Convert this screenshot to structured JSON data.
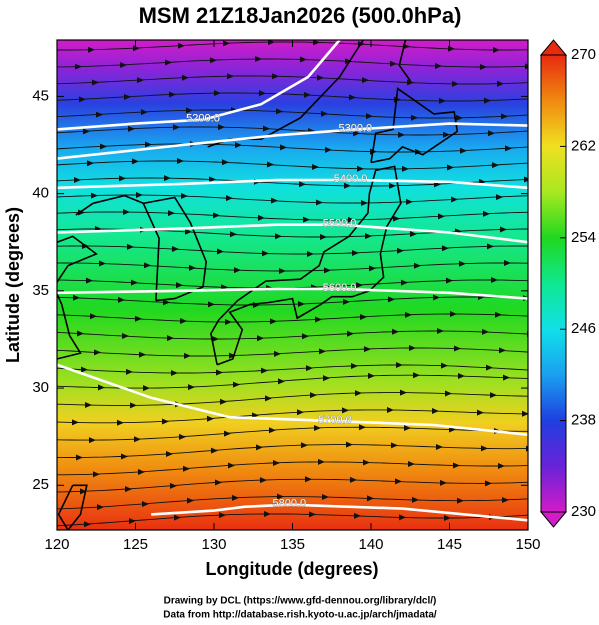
{
  "chart_data": {
    "type": "contour",
    "title": "MSM 21Z18Jan2026 (500.0hPa)",
    "x_label": "Longitude (degrees)",
    "y_label": "Latitude  (degrees)",
    "xlim": [
      120,
      150
    ],
    "xticks": [
      120,
      125,
      130,
      135,
      140,
      145,
      150
    ],
    "ylim": [
      22.7,
      47.9
    ],
    "yticks": [
      25,
      30,
      35,
      40,
      45
    ],
    "colorbar": {
      "lim": [
        230,
        270
      ],
      "ticks": [
        230,
        238,
        246,
        254,
        262,
        270
      ],
      "colors": [
        "#d21cc8",
        "#6a22d8",
        "#1f3fe0",
        "#1aa0f0",
        "#10e0e8",
        "#10e890",
        "#20d820",
        "#a8e820",
        "#f0e020",
        "#f08a10",
        "#e82a10"
      ]
    },
    "contours": [
      {
        "level": {
          "value": 5200,
          "label": "5200.0"
        },
        "lon": [
          120,
          125,
          129.3,
          133,
          136,
          138
        ],
        "lat": [
          43.3,
          43.6,
          43.8,
          44.6,
          46,
          47.9
        ]
      },
      {
        "level": {
          "value": 5300,
          "label": "5300.0"
        },
        "lon": [
          120,
          128,
          134,
          139,
          145,
          150
        ],
        "lat": [
          41.8,
          42.5,
          43,
          43.3,
          43.6,
          43.5
        ]
      },
      {
        "level": {
          "value": 5400,
          "label": "5400.0"
        },
        "lon": [
          120,
          128,
          134,
          138.7,
          145,
          150
        ],
        "lat": [
          40.3,
          40.5,
          40.7,
          40.7,
          40.6,
          40.3
        ]
      },
      {
        "level": {
          "value": 5500,
          "label": "5500.0"
        },
        "lon": [
          120,
          128,
          134,
          138,
          145,
          150
        ],
        "lat": [
          38,
          38.2,
          38.4,
          38.4,
          38,
          37.5
        ]
      },
      {
        "level": {
          "value": 5600,
          "label": "5600.0"
        },
        "lon": [
          120,
          128,
          134,
          138,
          145,
          150
        ],
        "lat": [
          34.9,
          35,
          35.1,
          35.1,
          34.9,
          34.6
        ]
      },
      {
        "level": {
          "value": 5700,
          "label": "5700.0"
        },
        "lon": [
          120,
          126,
          131,
          137.7,
          144,
          150
        ],
        "lat": [
          31.2,
          29.5,
          28.5,
          28.3,
          28.1,
          27.6
        ]
      },
      {
        "level": {
          "value": 5800,
          "label": "5800.0"
        },
        "lon": [
          126,
          130,
          132,
          134.8,
          142,
          150
        ],
        "lat": [
          23.5,
          23.7,
          23.9,
          24,
          23.8,
          23.2
        ]
      }
    ],
    "footer": [
      "Drawing by DCL (https://www.gfd-dennou.org/library/dcl/)",
      "Data from http://database.rish.kyoto-u.ac.jp/arch/jmadata/"
    ]
  }
}
